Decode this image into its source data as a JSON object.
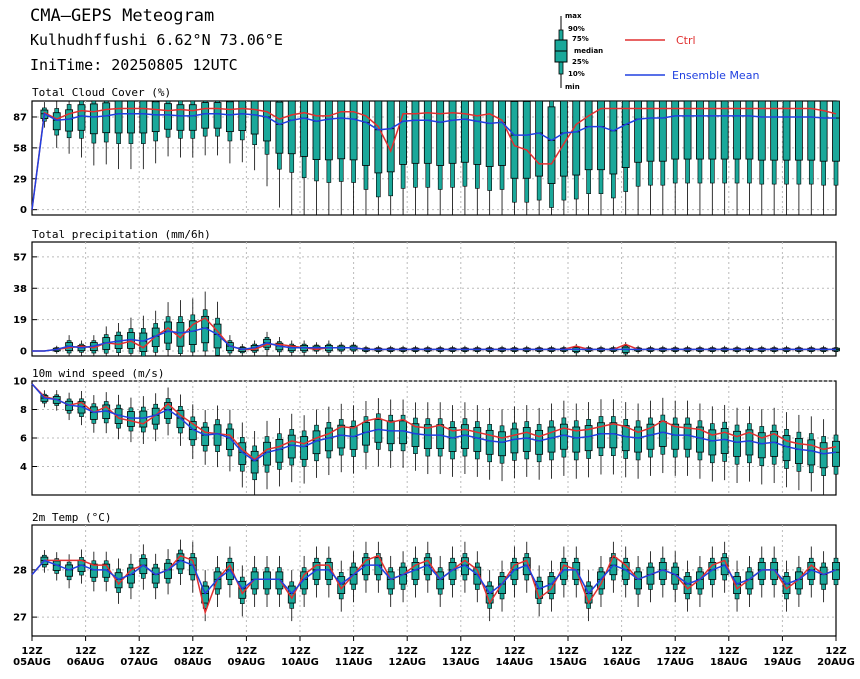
{
  "header": {
    "title": "CMA—GEPS Meteogram",
    "location": "Kulhudhffushi 6.62°N 73.06°E",
    "init": "IniTime: 20250805 12UTC"
  },
  "legend": {
    "box_labels": [
      "max",
      "90%",
      "75%",
      "median",
      "25%",
      "10%",
      "min"
    ],
    "ctrl": "Ctrl",
    "mean": "Ensemble Mean",
    "ctrl_color": "#e03030",
    "mean_color": "#2040e0",
    "box_color": "#1aa89a"
  },
  "time_axis": {
    "hours": [
      12,
      12,
      12,
      12,
      12,
      12,
      12,
      12,
      12,
      12,
      12,
      12,
      12,
      12,
      12,
      12
    ],
    "labels": [
      [
        "12Z",
        "05AUG"
      ],
      [
        "12Z",
        "06AUG"
      ],
      [
        "12Z",
        "07AUG"
      ],
      [
        "12Z",
        "08AUG"
      ],
      [
        "12Z",
        "09AUG"
      ],
      [
        "12Z",
        "10AUG"
      ],
      [
        "12Z",
        "11AUG"
      ],
      [
        "12Z",
        "12AUG"
      ],
      [
        "12Z",
        "13AUG"
      ],
      [
        "12Z",
        "14AUG"
      ],
      [
        "12Z",
        "15AUG"
      ],
      [
        "12Z",
        "16AUG"
      ],
      [
        "12Z",
        "17AUG"
      ],
      [
        "12Z",
        "18AUG"
      ],
      [
        "12Z",
        "19AUG"
      ],
      [
        "12Z",
        "20AUG"
      ]
    ],
    "step_hours": 6
  },
  "chart_data": [
    {
      "type": "box",
      "title": "Total Cloud Cover (%)",
      "ylim": [
        -5,
        102
      ],
      "yticks": [
        0,
        29,
        58,
        87
      ],
      "ctrl": [
        0,
        91,
        85,
        90,
        93,
        92,
        94,
        95,
        95,
        95,
        94,
        93,
        94,
        93,
        95,
        95,
        94,
        95,
        94,
        92,
        85,
        89,
        91,
        88,
        88,
        92,
        92,
        88,
        78,
        55,
        90,
        90,
        91,
        90,
        91,
        90,
        88,
        90,
        84,
        60,
        56,
        43,
        43,
        62,
        80,
        88,
        95,
        95,
        95,
        95,
        95,
        95,
        95,
        95,
        95,
        95,
        95,
        95,
        95,
        95,
        95,
        95,
        95,
        95,
        93,
        90
      ],
      "mean": [
        0,
        90,
        84,
        85,
        88,
        87,
        88,
        90,
        90,
        90,
        89,
        89,
        88,
        88,
        90,
        90,
        89,
        90,
        89,
        87,
        80,
        84,
        86,
        83,
        85,
        86,
        85,
        82,
        75,
        76,
        83,
        84,
        84,
        82,
        84,
        85,
        83,
        81,
        82,
        70,
        70,
        72,
        65,
        72,
        73,
        78,
        78,
        74,
        80,
        85,
        86,
        86,
        88,
        88,
        88,
        88,
        88,
        88,
        88,
        87,
        87,
        87,
        87,
        87,
        86,
        86
      ],
      "spread": [
        0,
        10,
        20,
        25,
        30,
        35,
        35,
        40,
        40,
        40,
        35,
        30,
        30,
        30,
        30,
        30,
        35,
        35,
        40,
        50,
        60,
        70,
        80,
        80,
        85,
        85,
        85,
        90,
        90,
        90,
        90,
        90,
        90,
        90,
        90,
        90,
        90,
        90,
        90,
        90,
        90,
        90,
        90,
        90,
        90,
        90,
        90,
        90,
        90,
        90,
        90,
        90,
        90,
        90,
        90,
        90,
        90,
        90,
        90,
        90,
        90,
        90,
        90,
        90,
        90,
        90
      ]
    },
    {
      "type": "box",
      "title": "Total precipitation (mm/6h)",
      "ylim": [
        -3,
        66
      ],
      "yticks": [
        0,
        19,
        38,
        57
      ],
      "ctrl": [
        0,
        0,
        1,
        2,
        3,
        2,
        5,
        4,
        6,
        2,
        9,
        14,
        8,
        16,
        20,
        12,
        3,
        1,
        1,
        4,
        4,
        3,
        2,
        1,
        2,
        2,
        2,
        1,
        1,
        1,
        1,
        1,
        1,
        1,
        1,
        1,
        1,
        1,
        1,
        1,
        1,
        1,
        1,
        1,
        3,
        1,
        1,
        1,
        4,
        1,
        1,
        1,
        1,
        1,
        1,
        1,
        1,
        1,
        1,
        1,
        1,
        1,
        1,
        1,
        1,
        1
      ],
      "mean": [
        0,
        0,
        1,
        3,
        2,
        3,
        5,
        6,
        7,
        6,
        9,
        12,
        11,
        12,
        14,
        10,
        3,
        1,
        2,
        5,
        3,
        2,
        2,
        2,
        2,
        2,
        2,
        1,
        1,
        1,
        1,
        1,
        1,
        1,
        1,
        1,
        1,
        1,
        1,
        1,
        1,
        1,
        1,
        1,
        1,
        1,
        1,
        1,
        1,
        1,
        1,
        1,
        1,
        1,
        1,
        1,
        1,
        1,
        1,
        1,
        1,
        1,
        1,
        1,
        1,
        1
      ],
      "spread": [
        0,
        0,
        2,
        6,
        4,
        6,
        9,
        10,
        12,
        14,
        14,
        16,
        18,
        18,
        20,
        18,
        6,
        3,
        4,
        6,
        5,
        4,
        4,
        3,
        4,
        3,
        3,
        2,
        2,
        2,
        2,
        2,
        2,
        2,
        2,
        2,
        2,
        2,
        2,
        2,
        2,
        2,
        2,
        2,
        3,
        2,
        2,
        2,
        4,
        2,
        2,
        2,
        2,
        2,
        2,
        2,
        2,
        2,
        2,
        2,
        2,
        2,
        2,
        2,
        2,
        2
      ]
    },
    {
      "type": "box",
      "title": "10m wind speed (m/s)",
      "ylim": [
        2.0,
        10.0
      ],
      "yticks": [
        4,
        6,
        8,
        10
      ],
      "ctrl": [
        9.8,
        8.9,
        8.7,
        8.3,
        8.5,
        7.8,
        8.2,
        7.4,
        7.2,
        7.0,
        7.6,
        8.4,
        7.6,
        7.0,
        6.4,
        6.3,
        6.2,
        5.2,
        4.5,
        5.2,
        5.4,
        5.8,
        5.6,
        6.0,
        6.3,
        6.8,
        6.7,
        7.2,
        7.4,
        7.1,
        7.3,
        6.8,
        6.7,
        6.9,
        6.5,
        6.6,
        6.4,
        6.2,
        6.0,
        6.2,
        6.4,
        6.1,
        6.4,
        6.7,
        6.5,
        6.6,
        6.8,
        7.0,
        6.8,
        6.4,
        6.7,
        7.2,
        6.8,
        6.7,
        6.6,
        6.2,
        6.4,
        6.1,
        6.4,
        6.0,
        6.3,
        5.8,
        5.6,
        5.5,
        5.2,
        5.4
      ],
      "mean": [
        9.8,
        8.8,
        8.7,
        8.3,
        8.2,
        7.8,
        7.9,
        7.6,
        7.4,
        7.4,
        7.6,
        8.0,
        7.4,
        6.6,
        6.2,
        6.3,
        6.0,
        5.0,
        4.4,
        5.0,
        5.2,
        5.5,
        5.4,
        5.8,
        6.0,
        6.2,
        6.1,
        6.4,
        6.6,
        6.5,
        6.5,
        6.3,
        6.2,
        6.2,
        6.0,
        6.2,
        6.0,
        5.8,
        5.7,
        5.9,
        6.0,
        5.8,
        6.0,
        6.2,
        6.0,
        6.1,
        6.3,
        6.3,
        6.1,
        6.0,
        6.2,
        6.4,
        6.2,
        6.2,
        6.0,
        5.8,
        5.9,
        5.7,
        5.8,
        5.6,
        5.7,
        5.4,
        5.2,
        5.1,
        4.9,
        5.0
      ],
      "spread": [
        0,
        0.5,
        0.6,
        0.8,
        1.0,
        1.1,
        1.2,
        1.3,
        1.3,
        1.4,
        1.4,
        1.4,
        1.5,
        1.6,
        1.6,
        1.8,
        1.8,
        1.9,
        1.9,
        2.0,
        2.0,
        2.0,
        2.0,
        2.0,
        2.0,
        2.0,
        2.0,
        2.0,
        2.0,
        2.0,
        2.0,
        2.0,
        2.1,
        2.1,
        2.1,
        2.1,
        2.1,
        2.1,
        2.1,
        2.1,
        2.1,
        2.1,
        2.2,
        2.2,
        2.2,
        2.2,
        2.2,
        2.2,
        2.2,
        2.2,
        2.2,
        2.2,
        2.2,
        2.2,
        2.2,
        2.2,
        2.2,
        2.2,
        2.2,
        2.2,
        2.2,
        2.2,
        2.2,
        2.2,
        2.2,
        2.2
      ]
    },
    {
      "type": "box",
      "title": "2m Temp (°C)",
      "ylim": [
        26.6,
        28.95
      ],
      "yticks": [
        27,
        28
      ],
      "ctrl": [
        27.9,
        28.2,
        28.2,
        28.2,
        28.2,
        28.1,
        28.1,
        27.7,
        28.0,
        28.1,
        27.9,
        28.0,
        28.3,
        28.2,
        27.1,
        27.8,
        28.1,
        27.5,
        27.8,
        27.8,
        27.8,
        27.4,
        27.9,
        28.1,
        28.1,
        27.6,
        27.9,
        28.2,
        28.3,
        27.8,
        27.9,
        28.1,
        28.2,
        27.8,
        28.0,
        28.2,
        28.0,
        27.3,
        27.7,
        28.1,
        28.2,
        27.4,
        27.6,
        28.1,
        28.0,
        27.3,
        27.7,
        28.3,
        28.1,
        27.8,
        27.9,
        28.0,
        27.9,
        27.6,
        27.8,
        28.1,
        28.2,
        27.6,
        27.8,
        28.0,
        28.0,
        27.6,
        27.8,
        28.1,
        27.9,
        28.0
      ],
      "mean": [
        27.9,
        28.2,
        28.1,
        28.0,
        28.1,
        28.0,
        28.0,
        27.8,
        27.9,
        28.1,
        27.9,
        28.0,
        28.2,
        28.1,
        27.5,
        27.8,
        28.0,
        27.6,
        27.8,
        27.8,
        27.8,
        27.5,
        27.8,
        28.0,
        28.0,
        27.7,
        27.9,
        28.1,
        28.1,
        27.8,
        27.9,
        28.0,
        28.1,
        27.8,
        28.0,
        28.1,
        27.9,
        27.5,
        27.7,
        28.0,
        28.1,
        27.6,
        27.7,
        28.0,
        28.0,
        27.5,
        27.8,
        28.1,
        28.0,
        27.8,
        27.9,
        28.0,
        27.9,
        27.7,
        27.8,
        28.0,
        28.1,
        27.7,
        27.8,
        28.0,
        28.0,
        27.7,
        27.8,
        28.0,
        27.9,
        28.0
      ],
      "spread": [
        0,
        0.2,
        0.25,
        0.3,
        0.3,
        0.35,
        0.35,
        0.4,
        0.4,
        0.4,
        0.4,
        0.4,
        0.4,
        0.45,
        0.45,
        0.45,
        0.45,
        0.45,
        0.45,
        0.45,
        0.45,
        0.45,
        0.45,
        0.45,
        0.45,
        0.45,
        0.45,
        0.45,
        0.45,
        0.45,
        0.45,
        0.45,
        0.45,
        0.45,
        0.45,
        0.45,
        0.45,
        0.45,
        0.45,
        0.45,
        0.45,
        0.45,
        0.45,
        0.45,
        0.45,
        0.45,
        0.45,
        0.45,
        0.45,
        0.45,
        0.45,
        0.45,
        0.45,
        0.45,
        0.45,
        0.45,
        0.45,
        0.45,
        0.45,
        0.45,
        0.45,
        0.45,
        0.45,
        0.45,
        0.45,
        0.45
      ]
    }
  ]
}
